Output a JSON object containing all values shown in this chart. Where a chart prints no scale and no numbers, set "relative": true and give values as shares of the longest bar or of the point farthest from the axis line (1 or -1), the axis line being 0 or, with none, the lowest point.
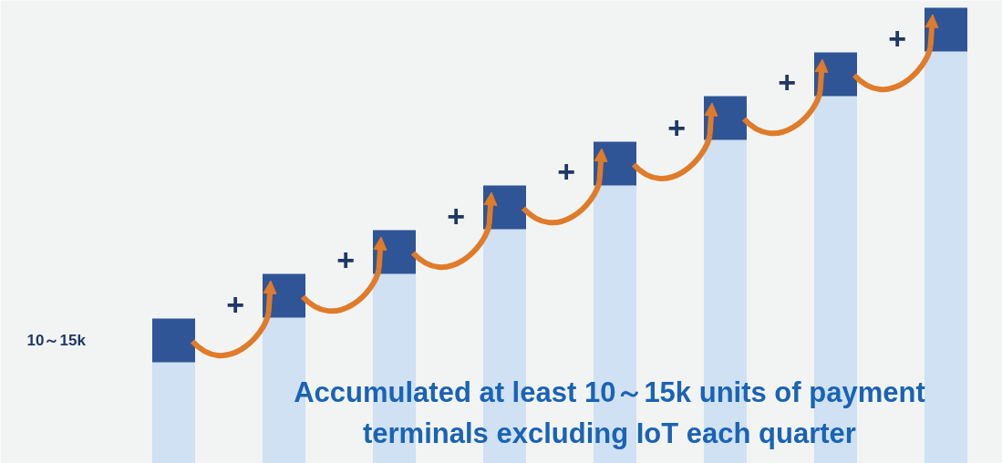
{
  "chart_data": {
    "type": "bar",
    "stacked": true,
    "relative": true,
    "categories": [
      null,
      null,
      null,
      null,
      null,
      null,
      null,
      null
    ],
    "series": [
      {
        "color": "#cfe1f3",
        "values": [
          0.222,
          0.32,
          0.416,
          0.514,
          0.61,
          0.71,
          0.806,
          0.904
        ]
      },
      {
        "color": "#2f5597",
        "values": [
          0.096,
          0.096,
          0.096,
          0.096,
          0.096,
          0.096,
          0.096,
          0.096
        ]
      }
    ],
    "annotations": [
      "10～15k",
      "+",
      "+",
      "+",
      "+",
      "+",
      "+",
      "+",
      "Accumulated at least 10～15k units of payment terminals excluding IoT each quarter"
    ],
    "grid": false,
    "tick_labels": false
  }
}
